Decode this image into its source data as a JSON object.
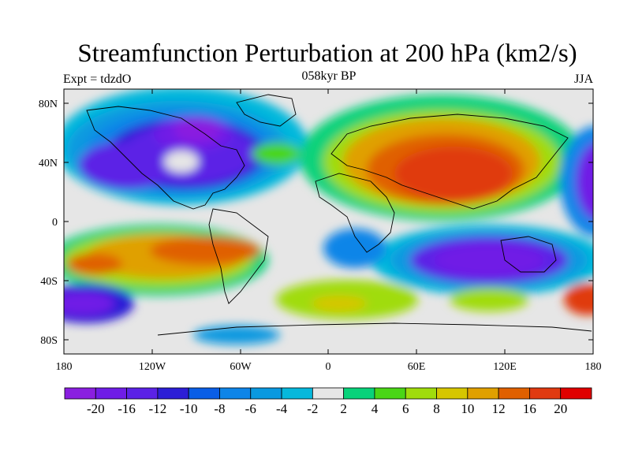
{
  "title": "Streamfunction Perturbation at 200 hPa (km2/s)",
  "left_string": "Expt = tdzdO",
  "center_string": "058kyr BP",
  "right_string": "JJA",
  "lat_labels": [
    "80N",
    "40N",
    "0",
    "40S",
    "80S"
  ],
  "lon_labels": [
    "180",
    "120W",
    "60W",
    "0",
    "60E",
    "120E",
    "180"
  ],
  "colorbar": {
    "labels": [
      "-20",
      "-16",
      "-12",
      "-10",
      "-8",
      "-6",
      "-4",
      "-2",
      "2",
      "4",
      "6",
      "8",
      "10",
      "12",
      "16",
      "20"
    ],
    "colors": [
      "#8a1fe0",
      "#6f1de6",
      "#5b22e6",
      "#2c1ed6",
      "#0a5ee6",
      "#0e85e8",
      "#0a99e0",
      "#06b8dc",
      "#e6e6e6",
      "#08d27a",
      "#4ad616",
      "#a0dc0c",
      "#d6c600",
      "#e0a000",
      "#e06000",
      "#e03a10",
      "#e00000"
    ]
  },
  "colors": {
    "land_outline": "#000000",
    "background_neutral": "#e6e6e6"
  }
}
